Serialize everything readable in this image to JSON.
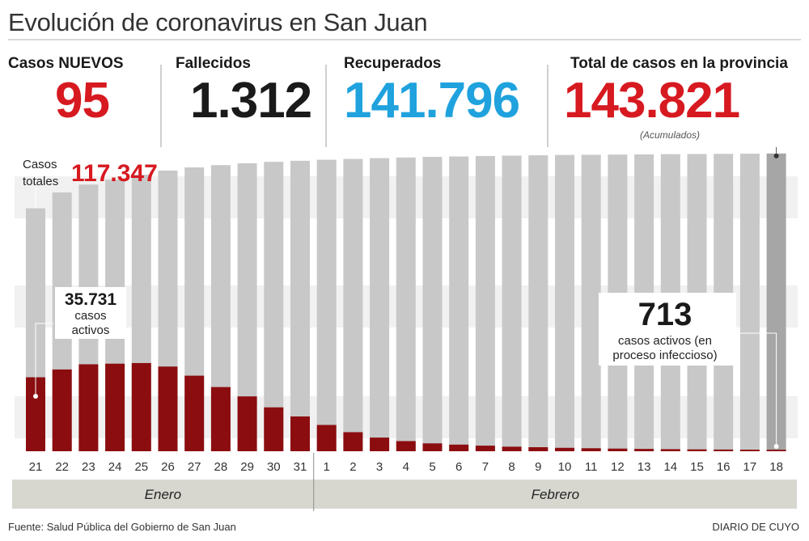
{
  "title": "Evolución de coronavirus en San Juan",
  "stats": {
    "nuevos": {
      "label": "Casos NUEVOS",
      "value": "95"
    },
    "fallecidos": {
      "label": "Fallecidos",
      "value": "1.312"
    },
    "recuperados": {
      "label": "Recuperados",
      "value": "141.796"
    },
    "total": {
      "label": "Total de casos en la provincia",
      "value": "143.821",
      "note": "(Acumulados)"
    }
  },
  "colors": {
    "red": "#d71920",
    "blue": "#1fa2dd",
    "dark": "#1a1a1a",
    "bar_total": "#c8c8c8",
    "bar_total_last": "#a6a6a6",
    "bar_active": "#8b0d10",
    "month_band": "#d7d7d0"
  },
  "chart_data": {
    "type": "bar",
    "title": "Evolución de coronavirus en San Juan",
    "categories": [
      "21",
      "22",
      "23",
      "24",
      "25",
      "26",
      "27",
      "28",
      "29",
      "30",
      "31",
      "1",
      "2",
      "3",
      "4",
      "5",
      "6",
      "7",
      "8",
      "9",
      "10",
      "11",
      "12",
      "13",
      "14",
      "15",
      "16",
      "17",
      "18"
    ],
    "months": [
      {
        "label": "Enero",
        "from": "21",
        "to": "31"
      },
      {
        "label": "Febrero",
        "from": "1",
        "to": "18"
      }
    ],
    "series": [
      {
        "name": "Casos totales",
        "values": [
          117347,
          125000,
          128800,
          131200,
          133600,
          135600,
          137100,
          138200,
          139100,
          139800,
          140300,
          140800,
          141200,
          141600,
          141900,
          142200,
          142400,
          142600,
          142800,
          142950,
          143100,
          143200,
          143300,
          143400,
          143500,
          143570,
          143650,
          143726,
          143821
        ]
      },
      {
        "name": "Casos activos",
        "values": [
          35731,
          39500,
          42000,
          42300,
          42600,
          40900,
          36500,
          31000,
          26500,
          21200,
          16800,
          12700,
          9200,
          6600,
          4900,
          3800,
          3200,
          2700,
          2200,
          1950,
          1650,
          1450,
          1280,
          1120,
          1000,
          900,
          820,
          760,
          713
        ]
      }
    ],
    "ylim": [
      0,
      150000
    ],
    "annotations": {
      "totales_label": "Casos totales",
      "totales_value": "117.347",
      "activos_start_value": "35.731",
      "activos_start_label": "casos activos",
      "activos_end_value": "713",
      "activos_end_label_1": "casos activos (en",
      "activos_end_label_2": "proceso infeccioso)"
    }
  },
  "footer": {
    "source": "Fuente: Salud Pública del Gobierno de San Juan",
    "brand": "DIARIO DE CUYO"
  }
}
